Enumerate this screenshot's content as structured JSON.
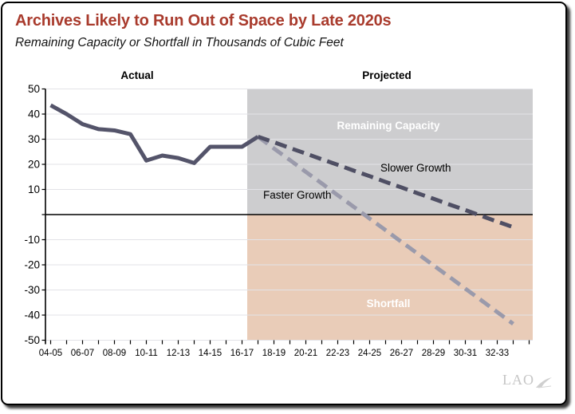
{
  "logo": {
    "text": "LAO"
  },
  "colors": {
    "title": "#A93B2D",
    "card_border": "#000000",
    "gridline": "#E3E3E7",
    "zero_line": "#000000",
    "axis": "#000000",
    "remaining_fill": "#CDCDCF",
    "shortfall_fill": "#E9CCB8",
    "actual_line": "#54546A",
    "slower_line": "#4F4F64",
    "faster_line": "#9A9AAB"
  },
  "chart_data": {
    "type": "line",
    "title": "Archives Likely to Run Out of Space by Late 2020s",
    "subtitle": "Remaining Capacity or Shortfall in Thousands of Cubic Feet",
    "units": "thousands of cubic feet",
    "ylim": [
      -50,
      50
    ],
    "ytick_step": 10,
    "ytick_labels": [
      50,
      40,
      30,
      20,
      10,
      -10,
      -20,
      -30,
      -40,
      -50
    ],
    "grid": true,
    "legend_position": "inline-annotations",
    "x_axis": {
      "labels": [
        "04-05",
        "06-07",
        "08-09",
        "10-11",
        "12-13",
        "14-15",
        "16-17",
        "18-19",
        "20-21",
        "22-23",
        "24-25",
        "26-27",
        "28-29",
        "30-31",
        "32-33"
      ],
      "label_interval_years": 2,
      "minor_ticks_every_year": true
    },
    "sections": {
      "actual_label": "Actual",
      "projected_label": "Projected",
      "projection_starts_after": "16-17"
    },
    "regions": [
      {
        "label": "Remaining Capacity",
        "value_range": [
          0,
          50
        ],
        "fill": "#CDCDCF"
      },
      {
        "label": "Shortfall",
        "value_range": [
          -50,
          0
        ],
        "fill": "#E9CCB8"
      }
    ],
    "series": [
      {
        "name": "Actual",
        "style": "solid",
        "color": "#54546A",
        "start_index": 0,
        "x": [
          "04-05",
          "05-06",
          "06-07",
          "07-08",
          "08-09",
          "09-10",
          "10-11",
          "11-12",
          "12-13",
          "13-14",
          "14-15",
          "15-16",
          "16-17",
          "17-18"
        ],
        "values": [
          43.5,
          40,
          36,
          34,
          33.5,
          32,
          21.5,
          23.5,
          22.5,
          20.5,
          27,
          27,
          27,
          31
        ]
      },
      {
        "name": "Slower Growth",
        "style": "dashed",
        "color": "#4F4F64",
        "start_index": 13,
        "x": [
          "17-18",
          "18-19",
          "19-20",
          "20-21",
          "21-22",
          "22-23",
          "23-24",
          "24-25",
          "25-26",
          "26-27",
          "27-28",
          "28-29",
          "29-30",
          "30-31",
          "31-32",
          "32-33",
          "33-34"
        ],
        "values": [
          31,
          28.8,
          26.5,
          24.3,
          22,
          19.8,
          17.5,
          15.3,
          13,
          10.8,
          8.5,
          6.3,
          4,
          1.8,
          -0.5,
          -2.8,
          -5
        ]
      },
      {
        "name": "Faster Growth",
        "style": "dashed",
        "color": "#9A9AAB",
        "start_index": 13,
        "x": [
          "17-18",
          "18-19",
          "19-20",
          "20-21",
          "21-22",
          "22-23",
          "23-24",
          "24-25",
          "25-26",
          "26-27",
          "27-28",
          "28-29",
          "29-30",
          "30-31",
          "31-32",
          "32-33",
          "33-34"
        ],
        "values": [
          31,
          26.3,
          21.7,
          17,
          12.4,
          7.7,
          3.1,
          -1.6,
          -6.2,
          -10.9,
          -15.5,
          -20.2,
          -24.8,
          -29.5,
          -34.1,
          -38.8,
          -43.5
        ]
      }
    ]
  }
}
